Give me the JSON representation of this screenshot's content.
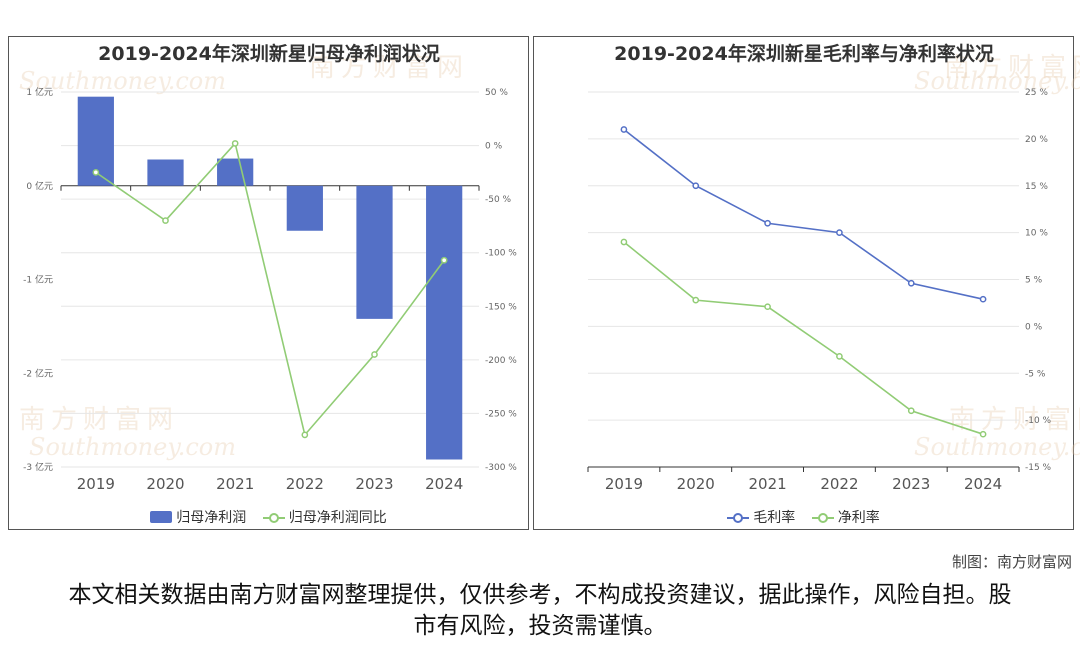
{
  "credit": "制图：南方财富网",
  "disclaimer": "本文相关数据由南方财富网整理提供，仅供参考，不构成投资建议，据此操作，风险自担。股市有风险，投资需谨慎。",
  "watermark": {
    "cn": "南方财富网",
    "en": "Southmoney.com"
  },
  "colors": {
    "bar": "#5470c6",
    "line_green": "#91cc75",
    "line_blue": "#5470c6"
  },
  "chart_data": [
    {
      "type": "bar",
      "title": "2019-2024年深圳新星归母净利润状况",
      "categories": [
        "2019",
        "2020",
        "2021",
        "2022",
        "2023",
        "2024"
      ],
      "series": [
        {
          "name": "归母净利润",
          "type": "bar",
          "axis": "left",
          "values": [
            0.95,
            0.28,
            0.29,
            -0.48,
            -1.42,
            -2.92
          ]
        },
        {
          "name": "归母净利润同比",
          "type": "line",
          "axis": "right",
          "values": [
            -25,
            -70,
            2,
            -270,
            -195,
            -107
          ]
        }
      ],
      "y_left": {
        "ticks": [
          1,
          0,
          -1,
          -2,
          -3
        ],
        "tick_labels": [
          "1 亿元",
          "0 亿元",
          "-1 亿元",
          "-2 亿元",
          "-3 亿元"
        ],
        "ylim": [
          -3,
          1
        ]
      },
      "y_right": {
        "ticks": [
          50,
          0,
          -50,
          -100,
          -150,
          -200,
          -250,
          -300
        ],
        "tick_labels": [
          "50 %",
          "0 %",
          "-50 %",
          "-100 %",
          "-150 %",
          "-200 %",
          "-250 %",
          "-300 %"
        ],
        "ylim": [
          -300,
          50
        ]
      },
      "legend_position": "bottom",
      "grid": true
    },
    {
      "type": "line",
      "title": "2019-2024年深圳新星毛利率与净利率状况",
      "categories": [
        "2019",
        "2020",
        "2021",
        "2022",
        "2023",
        "2024"
      ],
      "series": [
        {
          "name": "毛利率",
          "values": [
            21,
            15,
            11,
            10,
            4.6,
            2.9
          ]
        },
        {
          "name": "净利率",
          "values": [
            9,
            2.8,
            2.1,
            -3.2,
            -9,
            -11.5
          ]
        }
      ],
      "y_right": {
        "ticks": [
          25,
          20,
          15,
          10,
          5,
          0,
          -5,
          -10,
          -15
        ],
        "tick_labels": [
          "25 %",
          "20 %",
          "15 %",
          "10 %",
          "5 %",
          "0 %",
          "-5 %",
          "-10 %",
          "-15 %"
        ],
        "ylim": [
          -15,
          25
        ]
      },
      "legend_position": "bottom",
      "grid": true
    }
  ]
}
